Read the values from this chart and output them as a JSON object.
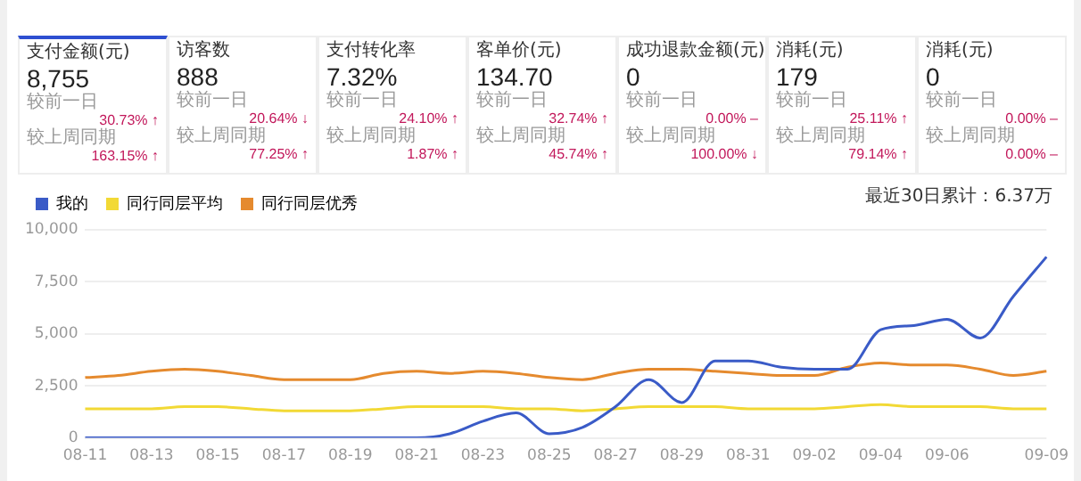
{
  "chart_data": [
    {
      "type": "other",
      "annotations": [
        "支付金额(元)",
        "8,755",
        "较前一日",
        "30.73% ↑",
        "较上周同期",
        "163.15% ↑",
        "访客数",
        "888",
        "较前一日",
        "20.64% ↓",
        "较上周同期",
        "77.25% ↑",
        "支付转化率",
        "7.32%",
        "较前一日",
        "24.10% ↑",
        "较上周同期",
        "1.87% ↑",
        "客单价(元)",
        "134.70",
        "较前一日",
        "32.74% ↑",
        "较上周同期",
        "45.74% ↑",
        "成功退款金额(元)",
        "0",
        "较前一日",
        "0.00% –",
        "较上周同期",
        "100.00% ↓",
        "消耗(元)",
        "179",
        "较前一日",
        "25.11% ↑",
        "较上周同期",
        "79.14% ↑",
        "消耗(元)",
        "0",
        "较前一日",
        "0.00% –",
        "较上周同期",
        "0.00% –"
      ]
    },
    {
      "type": "line",
      "categories": [
        "08-11",
        null,
        "08-13",
        null,
        "08-15",
        null,
        "08-17",
        null,
        "08-19",
        null,
        "08-21",
        null,
        "08-23",
        null,
        "08-25",
        null,
        "08-27",
        null,
        "08-29",
        null,
        "08-31",
        null,
        "09-02",
        null,
        "09-04",
        null,
        "09-06",
        null,
        null,
        "09-09"
      ],
      "series": [
        {
          "name": "我的",
          "color": "#3a5bc7",
          "values": [
            0,
            0,
            0,
            0,
            0,
            0,
            0,
            0,
            0,
            0,
            0,
            200,
            800,
            1200,
            200,
            500,
            1500,
            2800,
            1700,
            3700,
            3700,
            3400,
            3300,
            3300,
            5200,
            5400,
            5700,
            4800,
            6800,
            8700
          ]
        },
        {
          "name": "同行同层平均",
          "color": "#f2d935",
          "values": [
            1400,
            1400,
            1400,
            1500,
            1500,
            1400,
            1300,
            1300,
            1300,
            1400,
            1500,
            1500,
            1500,
            1400,
            1400,
            1300,
            1400,
            1500,
            1500,
            1500,
            1400,
            1400,
            1400,
            1500,
            1600,
            1500,
            1500,
            1500,
            1400,
            1400
          ]
        },
        {
          "name": "同行同层优秀",
          "color": "#e58a2e",
          "values": [
            2900,
            3000,
            3200,
            3300,
            3200,
            3000,
            2800,
            2800,
            2800,
            3100,
            3200,
            3100,
            3200,
            3100,
            2900,
            2800,
            3100,
            3300,
            3300,
            3200,
            3100,
            3000,
            3000,
            3400,
            3600,
            3500,
            3500,
            3300,
            3000,
            3200
          ]
        }
      ],
      "ylim": [
        0,
        10000
      ],
      "yticks": [
        {
          "value": 0,
          "label": "0"
        },
        {
          "value": 2500,
          "label": "2,500"
        },
        {
          "value": 5000,
          "label": "5,000"
        },
        {
          "value": 7500,
          "label": "7,500"
        },
        {
          "value": 10000,
          "label": "10,000"
        }
      ],
      "grid": "y",
      "legend": "top left",
      "marker": "none",
      "line_style": "solid",
      "annotations": [
        "最近30日累计：6.37万"
      ]
    }
  ]
}
